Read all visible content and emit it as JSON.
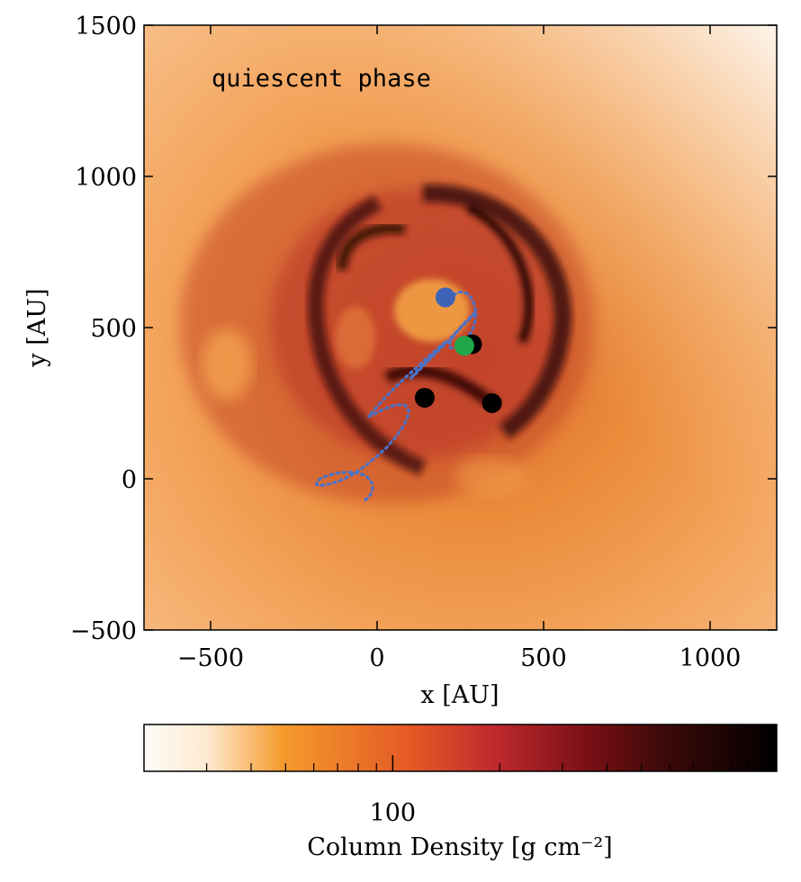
{
  "chart_data": [
    {
      "type": "heatmap",
      "xlabel": "x [AU]",
      "ylabel": "y [AU]",
      "xlim": [
        -700,
        1200
      ],
      "ylim": [
        -500,
        1500
      ],
      "xticks": [
        -500,
        0,
        500,
        1000
      ],
      "yticks": [
        -500,
        0,
        500,
        1000,
        1500
      ],
      "x_tick_labels": [
        "−500",
        "0",
        "500",
        "1000"
      ],
      "y_tick_labels": [
        "−500",
        "0",
        "500",
        "1000",
        "1500"
      ],
      "annotation": "quiescent phase",
      "grid": false,
      "colormap": [
        "#fffdf8",
        "#f59a2c",
        "#e45a26",
        "#b2202c",
        "#4e0808",
        "#000000"
      ],
      "points": [
        {
          "x": 205,
          "y": 600,
          "color": "#3f63b7"
        },
        {
          "x": 285,
          "y": 445,
          "color": "#000000"
        },
        {
          "x": 262,
          "y": 440,
          "color": "#1fa84a"
        },
        {
          "x": 143,
          "y": 268,
          "color": "#000000"
        },
        {
          "x": 345,
          "y": 250,
          "color": "#000000"
        }
      ],
      "trajectory": {
        "color": "#4a73c8",
        "style": "dotted",
        "x": [
          -35,
          -28,
          -20,
          -15,
          -13,
          -16,
          -24,
          -36,
          -53,
          -76,
          -102,
          -129,
          -153,
          -171,
          -181,
          -182,
          -175,
          -158,
          -134,
          -104,
          -71,
          -37,
          -3,
          29,
          56,
          76,
          90,
          95,
          92,
          82,
          66,
          46,
          25,
          5,
          -11,
          -22,
          -26,
          -22,
          -10,
          7,
          30,
          57,
          87,
          118,
          147,
          172,
          191,
          204,
          208,
          205,
          196,
          182,
          164,
          146,
          129,
          114,
          104,
          99,
          101,
          109,
          123,
          142,
          166,
          192,
          218,
          242,
          264,
          281,
          292,
          297,
          296,
          290,
          280,
          267,
          253,
          240,
          229,
          221,
          217,
          217,
          221,
          229,
          239,
          251,
          264,
          276,
          286,
          293,
          296,
          295,
          290,
          282,
          271,
          258,
          244,
          231,
          220,
          212,
          208,
          205
        ],
        "y": [
          -70,
          -63,
          -53,
          -40,
          -26,
          -13,
          0,
          11,
          18,
          22,
          21,
          17,
          9,
          0,
          -11,
          -18,
          -22,
          -21,
          -15,
          -3,
          16,
          41,
          72,
          104,
          138,
          170,
          198,
          221,
          236,
          244,
          245,
          241,
          232,
          222,
          213,
          207,
          206,
          212,
          226,
          248,
          275,
          305,
          337,
          368,
          397,
          421,
          440,
          451,
          454,
          450,
          440,
          425,
          406,
          386,
          366,
          349,
          337,
          331,
          332,
          340,
          355,
          377,
          404,
          433,
          462,
          490,
          514,
          533,
          546,
          552,
          551,
          545,
          534,
          520,
          504,
          487,
          471,
          457,
          446,
          438,
          433,
          433,
          437,
          445,
          457,
          473,
          492,
          514,
          537,
          560,
          582,
          599,
          612,
          618,
          617,
          608,
          594,
          578,
          585,
          600
        ]
      },
      "colorbar": {
        "label": "Column Density [g cm⁻²]",
        "tick_labels": [
          "100"
        ],
        "scale": "log",
        "range": [
          20,
          1200
        ],
        "major_ticks": [
          100
        ],
        "minor_ticks": [
          30,
          40,
          50,
          60,
          70,
          80,
          90,
          200,
          300,
          400,
          500,
          600,
          700,
          800,
          900,
          1000
        ]
      }
    }
  ]
}
